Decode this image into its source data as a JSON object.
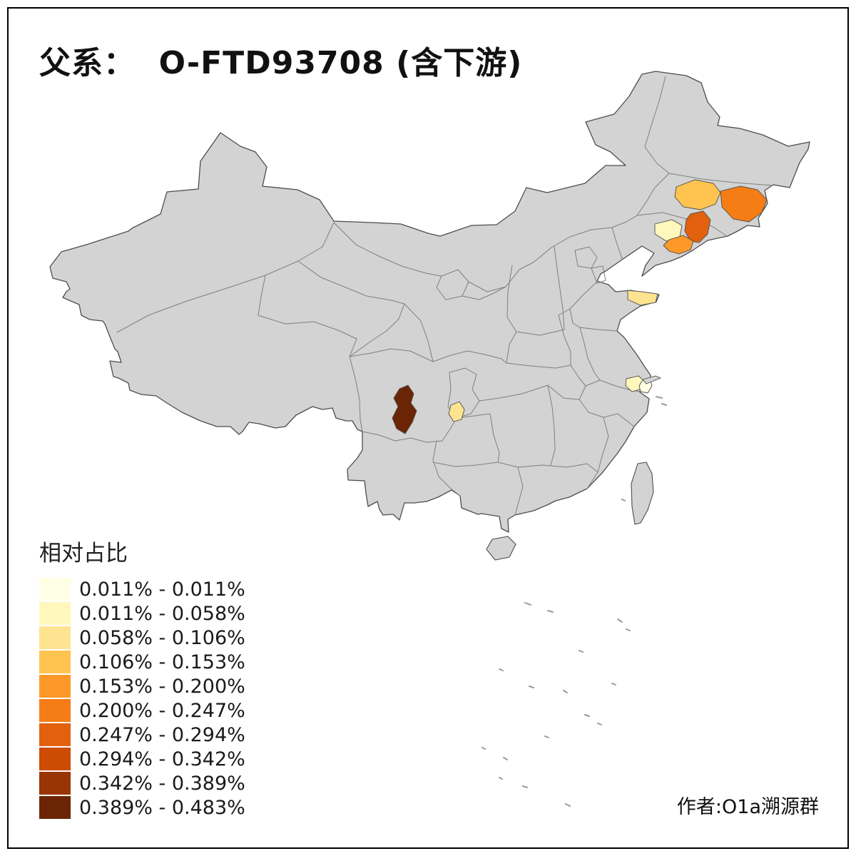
{
  "title": "父系：  O-FTD93708 (含下游)",
  "credit": "作者:O1a溯源群",
  "legend": {
    "title": "相对占比",
    "items": [
      {
        "label": "0.011% - 0.011%",
        "color": "#FFFFE5"
      },
      {
        "label": "0.011% - 0.058%",
        "color": "#FFF7BC"
      },
      {
        "label": "0.058% - 0.106%",
        "color": "#FEE391"
      },
      {
        "label": "0.106% - 0.153%",
        "color": "#FEC44F"
      },
      {
        "label": "0.153% - 0.200%",
        "color": "#FE9929"
      },
      {
        "label": "0.200% - 0.247%",
        "color": "#F57D15"
      },
      {
        "label": "0.247% - 0.294%",
        "color": "#E3610E"
      },
      {
        "label": "0.294% - 0.342%",
        "color": "#CC4C02"
      },
      {
        "label": "0.342% - 0.389%",
        "color": "#993404"
      },
      {
        "label": "0.389% - 0.483%",
        "color": "#6B2504"
      }
    ]
  },
  "map": {
    "base_fill": "#D3D3D3",
    "border_color": "#4D4D4D",
    "province_line_color": "#7F7F7F",
    "sea_island_color": "#9A9A9A",
    "background": "#FFFFFF",
    "regions": [
      {
        "id": "r1",
        "area": "central-northeast",
        "range": "0.106% - 0.153%",
        "color": "#FEC44F"
      },
      {
        "id": "r2",
        "area": "east-northeast",
        "range": "0.200% - 0.247%",
        "color": "#F57D15"
      },
      {
        "id": "r3",
        "area": "central-liaoning",
        "range": "0.011% - 0.058%",
        "color": "#FFF7BC"
      },
      {
        "id": "r4",
        "area": "east-liaoning",
        "range": "0.247% - 0.294%",
        "color": "#E3610E"
      },
      {
        "id": "r5",
        "area": "south-liaoning",
        "range": "0.153% - 0.200%",
        "color": "#FE9929"
      },
      {
        "id": "r6",
        "area": "shandong-peninsula",
        "range": "0.058% - 0.106%",
        "color": "#FEE391"
      },
      {
        "id": "r7",
        "area": "shanghai-area-east",
        "range": "0.011% - 0.011%",
        "color": "#FFFFE5"
      },
      {
        "id": "r7b",
        "area": "shanghai-area-west",
        "range": "0.011% - 0.058%",
        "color": "#FFF7BC"
      },
      {
        "id": "r8",
        "area": "west-sichuan",
        "range": "0.389% - 0.483%",
        "color": "#6B2504"
      },
      {
        "id": "r9",
        "area": "chongqing-area",
        "range": "0.058% - 0.106%",
        "color": "#FEE391"
      }
    ]
  }
}
